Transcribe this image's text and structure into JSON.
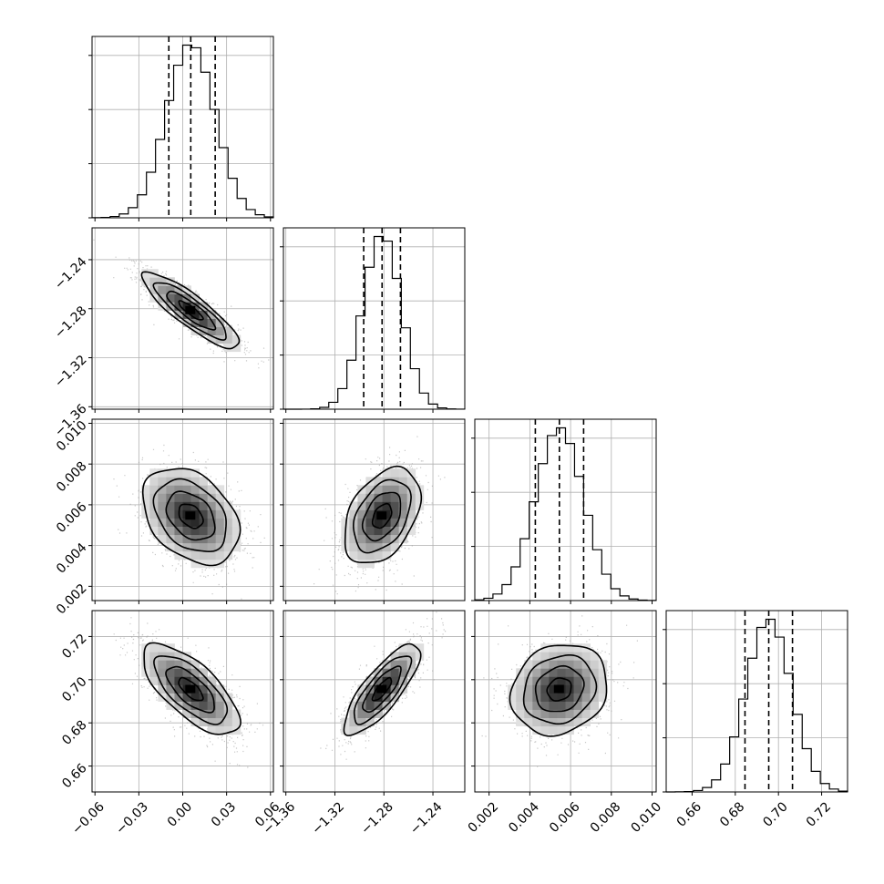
{
  "chart_data": {
    "type": "corner",
    "parameters": [
      {
        "mean": 0.0055,
        "sigma": 0.0165,
        "range": [
          -0.062,
          0.062
        ],
        "ticks": [
          -0.06,
          -0.03,
          0.0,
          0.03,
          0.06
        ],
        "tick_labels": [
          "−0.06",
          "−0.03",
          "0.00",
          "0.03",
          "0.06"
        ],
        "quantiles": [
          -0.0095,
          0.0055,
          0.0222
        ]
      },
      {
        "mean": -1.2815,
        "sigma": 0.0155,
        "range": [
          -1.362,
          -1.214
        ],
        "ticks": [
          -1.36,
          -1.32,
          -1.28,
          -1.24
        ],
        "tick_labels": [
          "−1.36",
          "−1.32",
          "−1.28",
          "−1.24"
        ],
        "quantiles": [
          -1.2965,
          -1.2815,
          -1.2665
        ]
      },
      {
        "mean": 0.00545,
        "sigma": 0.00118,
        "range": [
          0.0013,
          0.0102
        ],
        "ticks": [
          0.002,
          0.004,
          0.006,
          0.008,
          0.01
        ],
        "tick_labels": [
          "0.002",
          "0.004",
          "0.006",
          "0.008",
          "0.010"
        ],
        "quantiles": [
          0.00427,
          0.00545,
          0.00664
        ]
      },
      {
        "mean": 0.6955,
        "sigma": 0.0105,
        "range": [
          0.648,
          0.732
        ],
        "ticks": [
          0.66,
          0.68,
          0.7,
          0.72
        ],
        "tick_labels": [
          "0.66",
          "0.68",
          "0.70",
          "0.72"
        ],
        "quantiles": [
          0.6845,
          0.6955,
          0.7065
        ]
      }
    ],
    "correlations": [
      {
        "pair": [
          1,
          0
        ],
        "rho": -0.87
      },
      {
        "pair": [
          2,
          0
        ],
        "rho": -0.35
      },
      {
        "pair": [
          2,
          1
        ],
        "rho": 0.4
      },
      {
        "pair": [
          3,
          0
        ],
        "rho": -0.7
      },
      {
        "pair": [
          3,
          1
        ],
        "rho": 0.8
      },
      {
        "pair": [
          3,
          2
        ],
        "rho": 0.15
      }
    ],
    "contour_levels_sigma": [
      0.5,
      1.0,
      1.5,
      2.0
    ],
    "histogram_bins": 20,
    "grid": true
  }
}
